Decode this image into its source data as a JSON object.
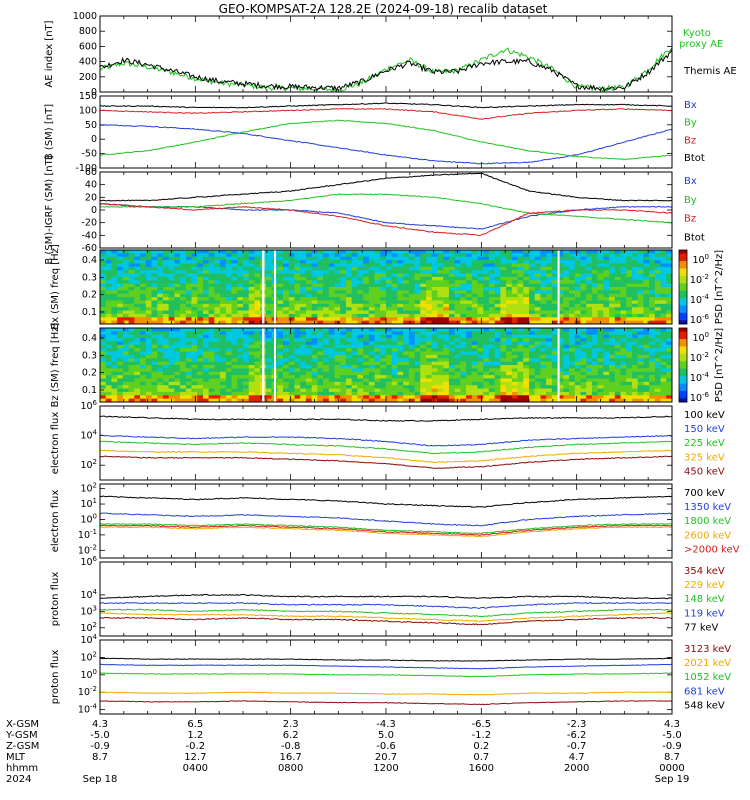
{
  "title": "GEO-KOMPSAT-2A 128.2E (2024-09-18) recalib dataset",
  "colors": {
    "black": "#000000",
    "blue": "#1f3fd8",
    "green": "#22c022",
    "red": "#d81e1e",
    "orange": "#f0a800",
    "darkred": "#8a0a0a",
    "lightgreen": "#22cc22"
  },
  "chart_data": [
    {
      "type": "line",
      "ylabel": "AE index [nT]",
      "ylim": [
        0,
        1000
      ],
      "yticks": [
        "1000",
        "800",
        "600",
        "400",
        "200",
        "0"
      ],
      "legend": [
        {
          "name": "Kyoto proxy AE",
          "color": "green"
        },
        {
          "name": "Themis AE",
          "color": "black"
        }
      ],
      "x_hours": [
        0,
        1,
        2,
        3,
        4,
        5,
        6,
        7,
        8,
        9,
        10,
        11,
        12,
        13,
        14,
        15,
        16,
        17,
        18,
        19,
        20,
        21,
        22,
        23,
        24
      ],
      "series": [
        {
          "name": "Kyoto proxy AE",
          "color": "green",
          "values": [
            300,
            380,
            330,
            260,
            180,
            120,
            90,
            60,
            50,
            40,
            30,
            120,
            300,
            420,
            260,
            280,
            420,
            560,
            460,
            300,
            70,
            40,
            60,
            300,
            600
          ]
        },
        {
          "name": "Themis AE",
          "color": "black",
          "values": [
            320,
            420,
            360,
            280,
            200,
            140,
            110,
            80,
            70,
            60,
            50,
            140,
            280,
            380,
            260,
            270,
            380,
            400,
            400,
            280,
            80,
            50,
            60,
            260,
            540
          ]
        }
      ]
    },
    {
      "type": "line",
      "ylabel": "B (SM) [nT]",
      "ylim": [
        -100,
        150
      ],
      "yticks": [
        "150",
        "100",
        "50",
        "0",
        "-50",
        "-100"
      ],
      "legend": [
        {
          "name": "Bx",
          "color": "blue"
        },
        {
          "name": "By",
          "color": "green"
        },
        {
          "name": "Bz",
          "color": "red"
        },
        {
          "name": "Btot",
          "color": "black"
        }
      ],
      "x_hours": [
        0,
        2,
        4,
        6,
        8,
        10,
        12,
        14,
        16,
        18,
        20,
        22,
        24
      ],
      "series": [
        {
          "name": "Bx",
          "color": "blue",
          "values": [
            50,
            45,
            35,
            20,
            -5,
            -30,
            -55,
            -75,
            -85,
            -80,
            -55,
            -10,
            35
          ]
        },
        {
          "name": "By",
          "color": "green",
          "values": [
            -55,
            -40,
            -10,
            25,
            55,
            65,
            55,
            30,
            -10,
            -40,
            -60,
            -70,
            -55
          ]
        },
        {
          "name": "Bz",
          "color": "red",
          "values": [
            100,
            95,
            90,
            95,
            100,
            105,
            105,
            95,
            70,
            90,
            100,
            105,
            100
          ]
        },
        {
          "name": "Btot",
          "color": "black",
          "values": [
            115,
            115,
            110,
            110,
            115,
            120,
            125,
            120,
            110,
            115,
            120,
            120,
            115
          ]
        }
      ]
    },
    {
      "type": "line",
      "ylabel": "B (SM)-IGRF (SM) [nT]",
      "ylim": [
        -60,
        60
      ],
      "yticks": [
        "60",
        "40",
        "20",
        "0",
        "-20",
        "-40",
        "-60"
      ],
      "legend": [
        {
          "name": "Bx",
          "color": "blue"
        },
        {
          "name": "By",
          "color": "green"
        },
        {
          "name": "Bz",
          "color": "red"
        },
        {
          "name": "Btot",
          "color": "black"
        }
      ],
      "x_hours": [
        0,
        2,
        4,
        6,
        8,
        10,
        12,
        14,
        16,
        18,
        20,
        22,
        24
      ],
      "series": [
        {
          "name": "Bx",
          "color": "blue",
          "values": [
            10,
            5,
            5,
            0,
            0,
            -5,
            -20,
            -25,
            -30,
            -10,
            0,
            5,
            5
          ]
        },
        {
          "name": "By",
          "color": "green",
          "values": [
            5,
            5,
            5,
            10,
            15,
            25,
            25,
            20,
            10,
            -5,
            -10,
            -15,
            -20
          ]
        },
        {
          "name": "Bz",
          "color": "red",
          "values": [
            10,
            5,
            0,
            5,
            0,
            -10,
            -25,
            -35,
            -40,
            -5,
            0,
            0,
            -5
          ]
        },
        {
          "name": "Btot",
          "color": "black",
          "values": [
            15,
            15,
            20,
            25,
            30,
            40,
            50,
            55,
            58,
            30,
            20,
            15,
            15
          ]
        }
      ]
    },
    {
      "type": "heatmap",
      "ylabel": "Bx (SM) freq [Hz]",
      "yticks": [
        "0.4",
        "0.3",
        "0.2",
        "0.1"
      ],
      "colorbar_label": "PSD [nT^2/Hz]",
      "colorbar_ticks": [
        "10^0",
        "10^-2",
        "10^-4",
        "10^-6"
      ]
    },
    {
      "type": "heatmap",
      "ylabel": "Bz (SM) freq [Hz]",
      "yticks": [
        "0.4",
        "0.3",
        "0.2",
        "0.1"
      ],
      "colorbar_label": "PSD [nT^2/Hz]",
      "colorbar_ticks": [
        "10^0",
        "10^-2",
        "10^-4",
        "10^-6"
      ]
    },
    {
      "type": "line",
      "ylabel": "electron flux",
      "log": true,
      "ylim_exp": [
        1,
        6
      ],
      "yticks": [
        "10^6",
        "10^4",
        "10^2"
      ],
      "legend": [
        {
          "name": "100 keV",
          "color": "black"
        },
        {
          "name": "150 keV",
          "color": "blue"
        },
        {
          "name": "225 keV",
          "color": "green"
        },
        {
          "name": "325 keV",
          "color": "orange"
        },
        {
          "name": "450 keV",
          "color": "darkred"
        }
      ],
      "x_hours": [
        0,
        2,
        4,
        6,
        8,
        10,
        12,
        14,
        16,
        18,
        20,
        22,
        24
      ],
      "series": [
        {
          "name": "100 keV",
          "color": "black",
          "values_exp": [
            5.3,
            5.2,
            5.1,
            5.1,
            5.1,
            5.1,
            5.0,
            5.0,
            5.1,
            5.2,
            5.2,
            5.2,
            5.3
          ]
        },
        {
          "name": "150 keV",
          "color": "blue",
          "values_exp": [
            4.0,
            3.9,
            3.8,
            3.9,
            3.9,
            3.8,
            3.6,
            3.3,
            3.4,
            3.7,
            3.8,
            3.9,
            4.0
          ]
        },
        {
          "name": "225 keV",
          "color": "green",
          "values_exp": [
            3.6,
            3.5,
            3.4,
            3.5,
            3.4,
            3.3,
            3.1,
            2.8,
            2.9,
            3.2,
            3.4,
            3.5,
            3.6
          ]
        },
        {
          "name": "325 keV",
          "color": "orange",
          "values_exp": [
            3.0,
            2.9,
            2.9,
            2.9,
            2.8,
            2.7,
            2.5,
            2.2,
            2.3,
            2.6,
            2.8,
            2.9,
            3.0
          ]
        },
        {
          "name": "450 keV",
          "color": "darkred",
          "values_exp": [
            2.6,
            2.5,
            2.5,
            2.5,
            2.4,
            2.3,
            2.1,
            1.8,
            1.9,
            2.2,
            2.4,
            2.5,
            2.6
          ]
        }
      ]
    },
    {
      "type": "line",
      "ylabel": "electron flux",
      "log": true,
      "ylim_exp": [
        -2.5,
        2.3
      ],
      "yticks": [
        "10^2",
        "10^1",
        "10^0",
        "10^-1",
        "10^-2"
      ],
      "legend": [
        {
          "name": "700 keV",
          "color": "black"
        },
        {
          "name": "1350 keV",
          "color": "blue"
        },
        {
          "name": "1800 keV",
          "color": "green"
        },
        {
          "name": "2600 keV",
          "color": "orange"
        },
        {
          "name": ">2000 keV",
          "color": "red"
        }
      ],
      "x_hours": [
        0,
        2,
        4,
        6,
        8,
        10,
        12,
        14,
        16,
        18,
        20,
        22,
        24
      ],
      "series": [
        {
          "name": "700 keV",
          "color": "black",
          "values_exp": [
            1.5,
            1.4,
            1.3,
            1.4,
            1.3,
            1.2,
            1.0,
            0.9,
            0.8,
            1.1,
            1.3,
            1.4,
            1.5
          ]
        },
        {
          "name": "1350 keV",
          "color": "blue",
          "values_exp": [
            0.4,
            0.3,
            0.2,
            0.3,
            0.2,
            0.1,
            -0.1,
            -0.3,
            -0.4,
            0.0,
            0.2,
            0.3,
            0.4
          ]
        },
        {
          "name": "1800 keV",
          "color": "green",
          "values_exp": [
            -0.3,
            -0.3,
            -0.4,
            -0.3,
            -0.4,
            -0.5,
            -0.7,
            -0.8,
            -0.9,
            -0.6,
            -0.4,
            -0.3,
            -0.3
          ]
        },
        {
          "name": "2600 keV",
          "color": "orange",
          "values_exp": [
            -0.5,
            -0.5,
            -0.6,
            -0.5,
            -0.6,
            -0.7,
            -0.9,
            -1.0,
            -1.1,
            -0.8,
            -0.6,
            -0.5,
            -0.5
          ]
        },
        {
          "name": ">2000 keV",
          "color": "red",
          "values_exp": [
            -0.4,
            -0.4,
            -0.5,
            -0.4,
            -0.5,
            -0.6,
            -0.8,
            -0.9,
            -1.0,
            -0.7,
            -0.5,
            -0.4,
            -0.4
          ]
        }
      ]
    },
    {
      "type": "line",
      "ylabel": "proton flux",
      "log": true,
      "ylim_exp": [
        1.5,
        6
      ],
      "yticks": [
        "10^6",
        "10^4",
        "10^3",
        "10^2"
      ],
      "legend": [
        {
          "name": "354 keV",
          "color": "darkred"
        },
        {
          "name": "229 keV",
          "color": "orange"
        },
        {
          "name": "148 keV",
          "color": "green"
        },
        {
          "name": "119 keV",
          "color": "blue"
        },
        {
          "name": "77 keV",
          "color": "black"
        }
      ],
      "x_hours": [
        0,
        2,
        4,
        6,
        8,
        10,
        12,
        14,
        16,
        18,
        20,
        22,
        24
      ],
      "series": [
        {
          "name": "77 keV",
          "color": "black",
          "values_exp": [
            3.8,
            3.9,
            4.0,
            4.0,
            3.9,
            3.9,
            3.9,
            3.9,
            3.8,
            3.9,
            3.9,
            3.8,
            3.8
          ]
        },
        {
          "name": "119 keV",
          "color": "blue",
          "values_exp": [
            3.5,
            3.5,
            3.5,
            3.5,
            3.4,
            3.4,
            3.4,
            3.3,
            3.2,
            3.4,
            3.5,
            3.5,
            3.5
          ]
        },
        {
          "name": "148 keV",
          "color": "green",
          "values_exp": [
            3.1,
            3.1,
            3.0,
            3.1,
            3.0,
            3.0,
            2.9,
            2.8,
            2.7,
            2.9,
            3.0,
            3.1,
            3.1
          ]
        },
        {
          "name": "229 keV",
          "color": "orange",
          "values_exp": [
            2.9,
            2.8,
            2.8,
            2.8,
            2.7,
            2.7,
            2.6,
            2.5,
            2.4,
            2.6,
            2.7,
            2.8,
            2.9
          ]
        },
        {
          "name": "354 keV",
          "color": "darkred",
          "values_exp": [
            2.6,
            2.6,
            2.5,
            2.6,
            2.5,
            2.5,
            2.4,
            2.3,
            2.2,
            2.4,
            2.5,
            2.6,
            2.6
          ]
        }
      ]
    },
    {
      "type": "line",
      "ylabel": "proton flux",
      "log": true,
      "ylim_exp": [
        -4.5,
        4
      ],
      "yticks": [
        "10^4",
        "10^2",
        "10^0",
        "10^-2",
        "10^-4"
      ],
      "legend": [
        {
          "name": "3123 keV",
          "color": "darkred"
        },
        {
          "name": "2021 keV",
          "color": "orange"
        },
        {
          "name": "1052 keV",
          "color": "green"
        },
        {
          "name": "681 keV",
          "color": "blue"
        },
        {
          "name": "548 keV",
          "color": "black"
        }
      ],
      "x_hours": [
        0,
        2,
        4,
        6,
        8,
        10,
        12,
        14,
        16,
        18,
        20,
        22,
        24
      ],
      "series": [
        {
          "name": "548 keV",
          "color": "black",
          "values_exp": [
            1.9,
            1.8,
            1.8,
            1.8,
            1.8,
            1.7,
            1.7,
            1.6,
            1.6,
            1.7,
            1.8,
            1.8,
            1.9
          ]
        },
        {
          "name": "681 keV",
          "color": "blue",
          "values_exp": [
            1.2,
            1.1,
            1.1,
            1.1,
            1.1,
            1.0,
            0.9,
            0.8,
            0.7,
            0.9,
            1.0,
            1.1,
            1.2
          ]
        },
        {
          "name": "1052 keV",
          "color": "green",
          "values_exp": [
            0.2,
            0.1,
            0.1,
            0.1,
            0.1,
            0.0,
            0.0,
            -0.1,
            -0.2,
            0.0,
            0.1,
            0.1,
            0.2
          ]
        },
        {
          "name": "2021 keV",
          "color": "orange",
          "values_exp": [
            -2.0,
            -2.1,
            -2.1,
            -2.0,
            -2.1,
            -2.1,
            -2.2,
            -2.2,
            -2.3,
            -2.1,
            -2.1,
            -2.0,
            -2.0
          ]
        },
        {
          "name": "3123 keV",
          "color": "darkred",
          "values_exp": [
            -3.0,
            -3.1,
            -3.1,
            -3.0,
            -3.1,
            -3.2,
            -3.2,
            -3.3,
            -3.4,
            -3.2,
            -3.1,
            -3.0,
            -3.0
          ]
        }
      ]
    }
  ],
  "xaxis": {
    "row_labels": [
      "X-GSM",
      "Y-GSM",
      "Z-GSM",
      "MLT",
      "hhmm",
      "2024"
    ],
    "columns": [
      {
        "values": [
          "4.3",
          "-5.0",
          "-0.9",
          "8.7",
          "",
          "Sep 18"
        ]
      },
      {
        "values": [
          "6.5",
          "1.2",
          "-0.2",
          "12.7",
          "0400",
          ""
        ]
      },
      {
        "values": [
          "2.3",
          "6.2",
          "-0.8",
          "16.7",
          "0800",
          ""
        ]
      },
      {
        "values": [
          "-4.3",
          "5.0",
          "-0.6",
          "20.7",
          "1200",
          ""
        ]
      },
      {
        "values": [
          "-6.5",
          "-1.2",
          "0.2",
          "0.7",
          "1600",
          ""
        ]
      },
      {
        "values": [
          "-2.3",
          "-6.2",
          "-0.7",
          "4.7",
          "2000",
          ""
        ]
      },
      {
        "values": [
          "4.3",
          "-5.0",
          "-0.9",
          "8.7",
          "0000",
          "Sep 19"
        ]
      }
    ]
  }
}
